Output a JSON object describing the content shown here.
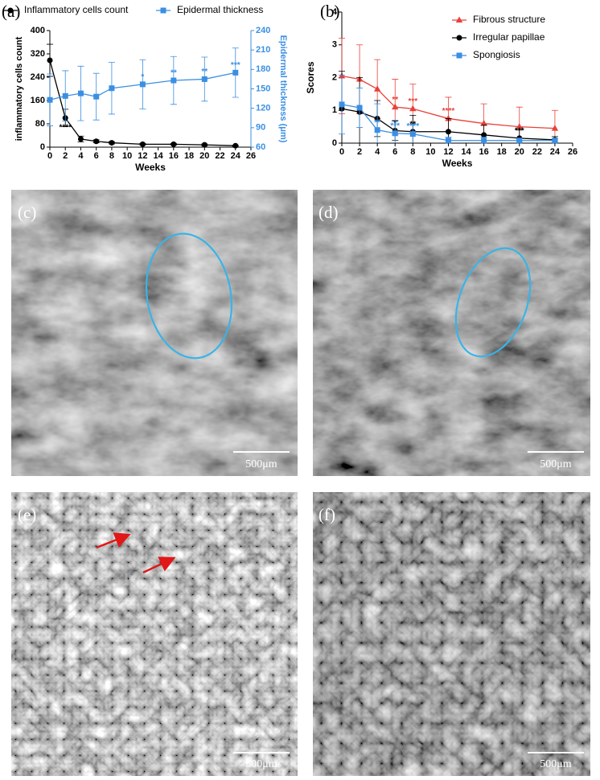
{
  "chart_data": [
    {
      "type": "line",
      "panel_label": "(a)",
      "xlabel": "Weeks",
      "ylabel": "inflammatory cells count",
      "y2label": "Epidermal thickness (μm)",
      "x": [
        0,
        2,
        4,
        6,
        8,
        12,
        16,
        20,
        24
      ],
      "xlim": [
        0,
        26
      ],
      "xticks": [
        0,
        2,
        4,
        6,
        8,
        10,
        12,
        14,
        16,
        18,
        20,
        22,
        24,
        26
      ],
      "ylim": [
        0,
        400
      ],
      "yticks": [
        0,
        80,
        160,
        240,
        320,
        400
      ],
      "y2lim": [
        60,
        240
      ],
      "y2ticks": [
        60,
        90,
        120,
        150,
        180,
        210,
        240
      ],
      "legend": "top",
      "series": [
        {
          "name": "Inflammatory cells count",
          "color": "#000000",
          "marker": "circle",
          "values": [
            298,
            100,
            28,
            20,
            15,
            10,
            10,
            8,
            5
          ],
          "errors": [
            55,
            30,
            10,
            5,
            4,
            3,
            3,
            3,
            2
          ],
          "significance": [
            null,
            "****",
            null,
            null,
            null,
            null,
            null,
            null,
            null
          ]
        },
        {
          "name": "Epidermal thickness",
          "color": "#3b8fe3",
          "marker": "square",
          "axis": "y2",
          "values": [
            133,
            139,
            143,
            138,
            151,
            157,
            163,
            165,
            175
          ],
          "errors": [
            40,
            39,
            42,
            36,
            40,
            38,
            37,
            34,
            38
          ],
          "significance": [
            null,
            null,
            null,
            null,
            null,
            "*",
            "**",
            "**",
            "***"
          ]
        }
      ]
    },
    {
      "type": "line",
      "panel_label": "(b)",
      "xlabel": "Weeks",
      "ylabel": "Scores",
      "x": [
        0,
        2,
        4,
        6,
        8,
        12,
        16,
        20,
        24
      ],
      "xlim": [
        0,
        26
      ],
      "xticks": [
        0,
        2,
        4,
        6,
        8,
        10,
        12,
        14,
        16,
        18,
        20,
        22,
        24,
        26
      ],
      "ylim": [
        0,
        4
      ],
      "yticks": [
        0,
        1,
        2,
        3,
        4
      ],
      "legend": "upper right",
      "series": [
        {
          "name": "Fibrous structure",
          "color": "#e8413a",
          "marker": "triangle",
          "values": [
            2.05,
            1.95,
            1.65,
            1.1,
            1.05,
            0.75,
            0.6,
            0.5,
            0.45
          ],
          "errors": [
            1.15,
            1.05,
            0.9,
            0.85,
            0.75,
            0.65,
            0.6,
            0.6,
            0.55
          ],
          "significance": [
            null,
            null,
            null,
            "**",
            "***",
            "****",
            null,
            null,
            null
          ]
        },
        {
          "name": "Irregular papillae",
          "color": "#000000",
          "marker": "circle",
          "values": [
            1.05,
            0.95,
            0.75,
            0.38,
            0.35,
            0.35,
            0.25,
            0.15,
            0.1
          ],
          "errors": [
            1.15,
            1.05,
            0.55,
            0.3,
            0.5,
            0.4,
            0.3,
            0.25,
            0.1
          ],
          "significance": [
            null,
            null,
            null,
            "*",
            "**",
            null,
            null,
            "***",
            null
          ]
        },
        {
          "name": "Spongiosis",
          "color": "#3b8fe3",
          "marker": "square",
          "values": [
            1.18,
            1.08,
            0.4,
            0.3,
            0.28,
            0.08,
            0.08,
            0.08,
            0.08
          ],
          "errors": [
            0.9,
            0.6,
            0.8,
            0.4,
            0.3,
            0.1,
            0.1,
            0.05,
            0.05
          ],
          "significance": [
            null,
            null,
            "**",
            "***",
            "****",
            null,
            null,
            null,
            null
          ]
        }
      ]
    }
  ],
  "images": [
    {
      "label": "(c)",
      "scale_bar": "500μm"
    },
    {
      "label": "(d)",
      "scale_bar": "500μm"
    },
    {
      "label": "(e)",
      "scale_bar": "500μm"
    },
    {
      "label": "(f)",
      "scale_bar": "500μm"
    }
  ]
}
